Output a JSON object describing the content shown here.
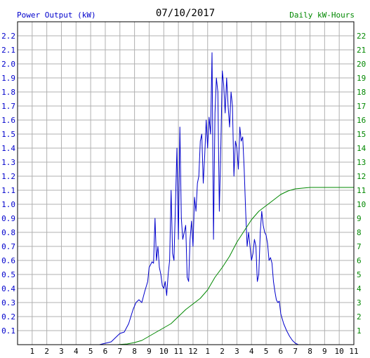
{
  "chart_data": {
    "type": "line",
    "title": "07/10/2017",
    "y_left_label": "Power Output (kW)",
    "y_right_label": "Daily kW-Hours",
    "x_ticks": [
      "1",
      "2",
      "3",
      "4",
      "5",
      "6",
      "7",
      "8",
      "9",
      "10",
      "11",
      "12",
      "1",
      "2",
      "3",
      "4",
      "5",
      "6",
      "7",
      "8",
      "9",
      "10",
      "11"
    ],
    "y_left_ticks": [
      "0.1",
      "0.2",
      "0.3",
      "0.4",
      "0.5",
      "0.6",
      "0.7",
      "0.8",
      "0.9",
      "1.0",
      "1.1",
      "1.2",
      "1.3",
      "1.4",
      "1.5",
      "1.6",
      "1.7",
      "1.8",
      "1.9",
      "2.0",
      "2.1",
      "2.2"
    ],
    "y_right_ticks": [
      "1",
      "2",
      "3",
      "4",
      "5",
      "6",
      "7",
      "8",
      "9",
      "10",
      "11",
      "12",
      "13",
      "14",
      "15",
      "16",
      "17",
      "18",
      "19",
      "20",
      "21",
      "22"
    ],
    "xlim": [
      0,
      23
    ],
    "ylim_left": [
      0,
      2.3
    ],
    "ylim_right": [
      0,
      23
    ],
    "grid": true,
    "series": [
      {
        "axis": "left",
        "color": "#0000cc",
        "x": [
          5.6,
          6.0,
          6.4,
          6.7,
          7.0,
          7.3,
          7.6,
          7.9,
          8.1,
          8.3,
          8.5,
          8.7,
          8.9,
          9.0,
          9.1,
          9.2,
          9.3,
          9.4,
          9.5,
          9.6,
          9.7,
          9.8,
          9.9,
          10.0,
          10.1,
          10.2,
          10.3,
          10.4,
          10.5,
          10.6,
          10.7,
          10.8,
          10.9,
          11.0,
          11.1,
          11.2,
          11.3,
          11.4,
          11.5,
          11.6,
          11.7,
          11.8,
          11.9,
          12.0,
          12.1,
          12.2,
          12.3,
          12.4,
          12.5,
          12.6,
          12.7,
          12.8,
          12.9,
          13.0,
          13.1,
          13.2,
          13.3,
          13.4,
          13.5,
          13.6,
          13.7,
          13.8,
          13.9,
          14.0,
          14.1,
          14.2,
          14.3,
          14.4,
          14.5,
          14.6,
          14.7,
          14.8,
          14.9,
          15.0,
          15.1,
          15.2,
          15.3,
          15.4,
          15.5,
          15.6,
          15.7,
          15.8,
          15.9,
          16.0,
          16.1,
          16.2,
          16.3,
          16.4,
          16.5,
          16.6,
          16.7,
          16.8,
          16.9,
          17.0,
          17.1,
          17.2,
          17.3,
          17.4,
          17.5,
          17.6,
          17.7,
          17.8,
          17.9,
          18.0,
          18.2,
          18.4,
          18.6,
          18.8,
          19.0,
          19.2,
          19.4,
          19.6,
          19.8
        ],
        "y": [
          0.0,
          0.01,
          0.02,
          0.05,
          0.08,
          0.09,
          0.15,
          0.25,
          0.3,
          0.32,
          0.3,
          0.38,
          0.45,
          0.55,
          0.57,
          0.59,
          0.58,
          0.9,
          0.6,
          0.7,
          0.55,
          0.5,
          0.42,
          0.4,
          0.45,
          0.35,
          0.5,
          0.6,
          1.1,
          0.65,
          0.6,
          1.0,
          1.4,
          0.75,
          1.55,
          0.9,
          0.75,
          0.8,
          0.85,
          0.48,
          0.45,
          0.75,
          0.88,
          0.7,
          1.05,
          0.95,
          1.15,
          1.2,
          1.45,
          1.5,
          1.15,
          1.35,
          1.6,
          1.4,
          1.62,
          1.5,
          2.08,
          0.75,
          1.65,
          1.9,
          1.8,
          0.95,
          1.4,
          1.95,
          1.85,
          1.65,
          1.9,
          1.7,
          1.55,
          1.8,
          1.7,
          1.2,
          1.45,
          1.4,
          1.25,
          1.55,
          1.45,
          1.48,
          1.25,
          0.95,
          0.7,
          0.8,
          0.7,
          0.6,
          0.65,
          0.75,
          0.7,
          0.45,
          0.5,
          0.8,
          0.95,
          0.85,
          0.8,
          0.78,
          0.72,
          0.6,
          0.62,
          0.58,
          0.45,
          0.38,
          0.32,
          0.3,
          0.31,
          0.22,
          0.15,
          0.1,
          0.06,
          0.03,
          0.01,
          0.0,
          0.0,
          0.0,
          0.0
        ]
      },
      {
        "axis": "right",
        "color": "#008800",
        "x": [
          6.8,
          7.5,
          8.0,
          8.5,
          9.0,
          9.5,
          10.0,
          10.5,
          11.0,
          11.5,
          12.0,
          12.5,
          13.0,
          13.5,
          14.0,
          14.5,
          15.0,
          15.5,
          16.0,
          16.5,
          17.0,
          17.5,
          18.0,
          18.5,
          19.0,
          19.5,
          20.0,
          20.5,
          21.0,
          21.5,
          22.0,
          23.0
        ],
        "y": [
          0.0,
          0.05,
          0.15,
          0.3,
          0.6,
          0.9,
          1.2,
          1.5,
          2.0,
          2.5,
          2.9,
          3.3,
          3.9,
          4.8,
          5.5,
          6.3,
          7.3,
          8.1,
          8.9,
          9.5,
          9.9,
          10.3,
          10.7,
          10.95,
          11.1,
          11.15,
          11.2,
          11.2,
          11.2,
          11.2,
          11.2,
          11.2
        ]
      }
    ]
  },
  "colors": {
    "left_axis": "#0000cc",
    "right_axis": "#008800",
    "grid": "#b0b0b0",
    "text": "#000000"
  }
}
